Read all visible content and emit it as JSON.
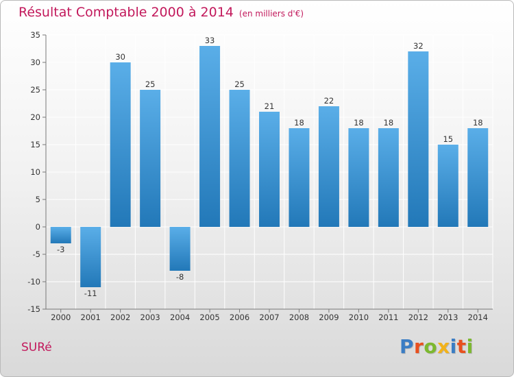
{
  "title": {
    "main": "Résultat Comptable 2000 à 2014",
    "unit": "(en milliers d'€)"
  },
  "commune": "SURé",
  "brand": {
    "name": "Proxiti",
    "letter_colors": [
      "#3b7dc4",
      "#e8501e",
      "#7cb82f",
      "#f2b21a",
      "#3b7dc4",
      "#e8501e",
      "#7cb82f"
    ]
  },
  "colors": {
    "bar_light": "#5aaee8",
    "bar_dark": "#2278b8",
    "grid": "#ffffff",
    "accent": "#c2185b"
  },
  "chart_data": {
    "type": "bar",
    "title": "Résultat Comptable 2000 à 2014",
    "ylabel": "en milliers d'€",
    "categories": [
      "2000",
      "2001",
      "2002",
      "2003",
      "2004",
      "2005",
      "2006",
      "2007",
      "2008",
      "2009",
      "2010",
      "2011",
      "2012",
      "2013",
      "2014"
    ],
    "values": [
      -3,
      -11,
      30,
      25,
      -8,
      33,
      25,
      21,
      18,
      22,
      18,
      18,
      32,
      15,
      18
    ],
    "value_labels": [
      "-3",
      "-11",
      "30",
      "25",
      "-8",
      "33",
      "25",
      "21",
      "18",
      "22",
      "18",
      "18",
      "32",
      "15",
      "18"
    ],
    "ylim": [
      -15,
      35
    ],
    "yticks": [
      -15,
      -10,
      -5,
      0,
      5,
      10,
      15,
      20,
      25,
      30,
      35
    ],
    "ytick_labels": [
      "-15",
      "-10",
      "-5",
      "0",
      "5",
      "10",
      "15",
      "20",
      "25",
      "30",
      "35"
    ],
    "grid": true
  }
}
